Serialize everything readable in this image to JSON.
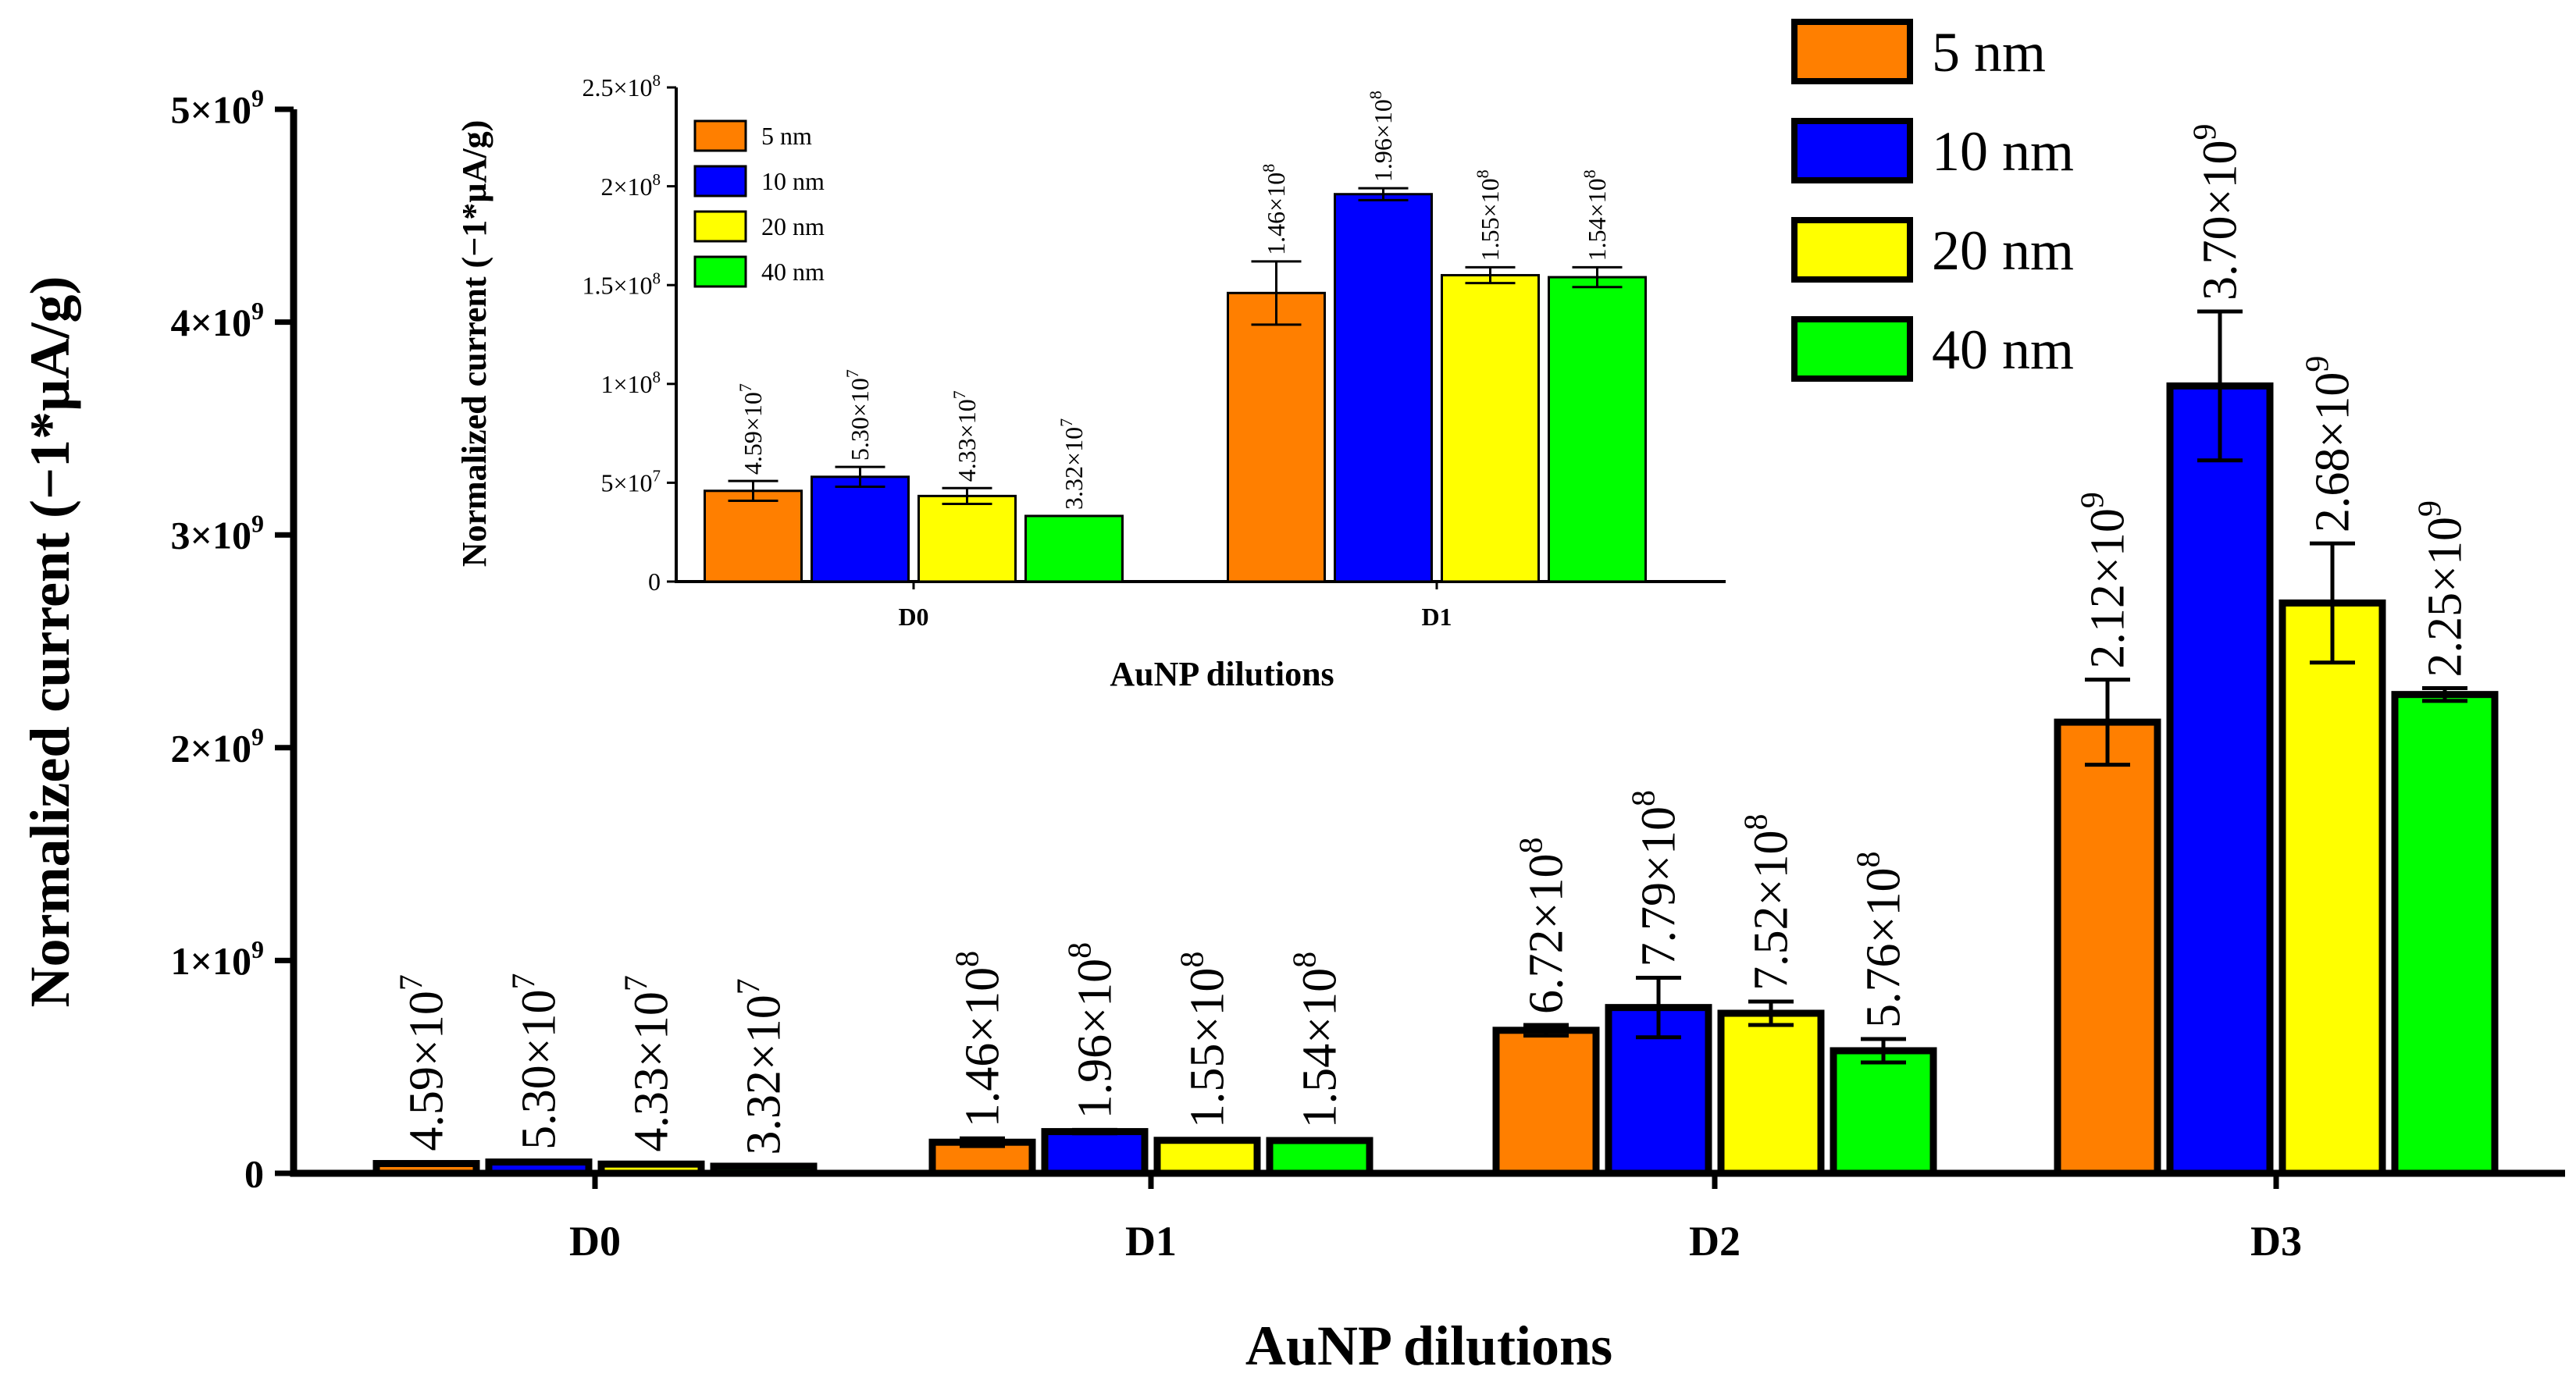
{
  "colors": {
    "5 nm": "#FF7F00",
    "10 nm": "#0000FF",
    "20 nm": "#FFFF00",
    "40 nm": "#00FF00",
    "axis": "#000000"
  },
  "chart_data": [
    {
      "id": "main",
      "type": "bar",
      "xlabel": "AuNP dilutions",
      "ylabel": "Normalized current (−1*µA/g)",
      "ylim": [
        0,
        5000000000
      ],
      "y_ticks": [
        {
          "value": 0,
          "label": "0",
          "exp": ""
        },
        {
          "value": 1000000000,
          "label": "1×10",
          "exp": "9"
        },
        {
          "value": 2000000000,
          "label": "2×10",
          "exp": "9"
        },
        {
          "value": 3000000000,
          "label": "3×10",
          "exp": "9"
        },
        {
          "value": 4000000000,
          "label": "4×10",
          "exp": "9"
        },
        {
          "value": 5000000000,
          "label": "5×10",
          "exp": "9"
        }
      ],
      "categories": [
        "D0",
        "D1",
        "D2",
        "D3"
      ],
      "legend_position": "top-right",
      "series": [
        {
          "name": "5 nm",
          "color": "#FF7F00",
          "values": [
            45900000,
            146000000,
            672000000,
            2120000000
          ],
          "errors": [
            7000000,
            18000000,
            25000000,
            200000000
          ],
          "labels": [
            {
              "mant": "4.59×10",
              "exp": "7"
            },
            {
              "mant": "1.46×10",
              "exp": "8"
            },
            {
              "mant": "6.72×10",
              "exp": "8"
            },
            {
              "mant": "2.12×10",
              "exp": "9"
            }
          ]
        },
        {
          "name": "10 nm",
          "color": "#0000FF",
          "values": [
            53000000,
            196000000,
            779000000,
            3700000000
          ],
          "errors": [
            6000000,
            8000000,
            140000000,
            350000000
          ],
          "labels": [
            {
              "mant": "5.30×10",
              "exp": "7"
            },
            {
              "mant": "1.96×10",
              "exp": "8"
            },
            {
              "mant": "7.79×10",
              "exp": "8"
            },
            {
              "mant": "3.70×10",
              "exp": "9"
            }
          ]
        },
        {
          "name": "20 nm",
          "color": "#FFFF00",
          "values": [
            43300000,
            155000000,
            752000000,
            2680000000
          ],
          "errors": [
            6000000,
            6000000,
            55000000,
            280000000
          ],
          "labels": [
            {
              "mant": "4.33×10",
              "exp": "7"
            },
            {
              "mant": "1.55×10",
              "exp": "8"
            },
            {
              "mant": "7.52×10",
              "exp": "8"
            },
            {
              "mant": "2.68×10",
              "exp": "9"
            }
          ]
        },
        {
          "name": "40 nm",
          "color": "#00FF00",
          "values": [
            33200000,
            154000000,
            576000000,
            2250000000
          ],
          "errors": [
            1000000,
            6000000,
            55000000,
            30000000
          ],
          "labels": [
            {
              "mant": "3.32×10",
              "exp": "7"
            },
            {
              "mant": "1.54×10",
              "exp": "8"
            },
            {
              "mant": "5.76×10",
              "exp": "8"
            },
            {
              "mant": "2.25×10",
              "exp": "9"
            }
          ]
        }
      ]
    },
    {
      "id": "inset",
      "type": "bar",
      "xlabel": "AuNP dilutions",
      "ylabel": "Normalized current (−1*µA/g)",
      "ylim": [
        0,
        250000000
      ],
      "y_ticks": [
        {
          "value": 0,
          "label": "0",
          "exp": ""
        },
        {
          "value": 50000000,
          "label": "5×10",
          "exp": "7"
        },
        {
          "value": 100000000,
          "label": "1×10",
          "exp": "8"
        },
        {
          "value": 150000000,
          "label": "1.5×10",
          "exp": "8"
        },
        {
          "value": 200000000,
          "label": "2×10",
          "exp": "8"
        },
        {
          "value": 250000000,
          "label": "2.5×10",
          "exp": "8"
        }
      ],
      "categories": [
        "D0",
        "D1"
      ],
      "legend_position": "top-left",
      "series": [
        {
          "name": "5 nm",
          "color": "#FF7F00",
          "values": [
            45900000,
            146000000
          ],
          "errors": [
            5000000,
            16000000
          ],
          "labels": [
            {
              "mant": "4.59×10",
              "exp": "7"
            },
            {
              "mant": "1.46×10",
              "exp": "8"
            }
          ]
        },
        {
          "name": "10 nm",
          "color": "#0000FF",
          "values": [
            53000000,
            196000000
          ],
          "errors": [
            5000000,
            3000000
          ],
          "labels": [
            {
              "mant": "5.30×10",
              "exp": "7"
            },
            {
              "mant": "1.96×10",
              "exp": "8"
            }
          ]
        },
        {
          "name": "20 nm",
          "color": "#FFFF00",
          "values": [
            43300000,
            155000000
          ],
          "errors": [
            4000000,
            4000000
          ],
          "labels": [
            {
              "mant": "4.33×10",
              "exp": "7"
            },
            {
              "mant": "1.55×10",
              "exp": "8"
            }
          ]
        },
        {
          "name": "40 nm",
          "color": "#00FF00",
          "values": [
            33200000,
            154000000
          ],
          "errors": [
            0,
            5000000
          ],
          "labels": [
            {
              "mant": "3.32×10",
              "exp": "7"
            },
            {
              "mant": "1.54×10",
              "exp": "8"
            }
          ]
        }
      ]
    }
  ]
}
